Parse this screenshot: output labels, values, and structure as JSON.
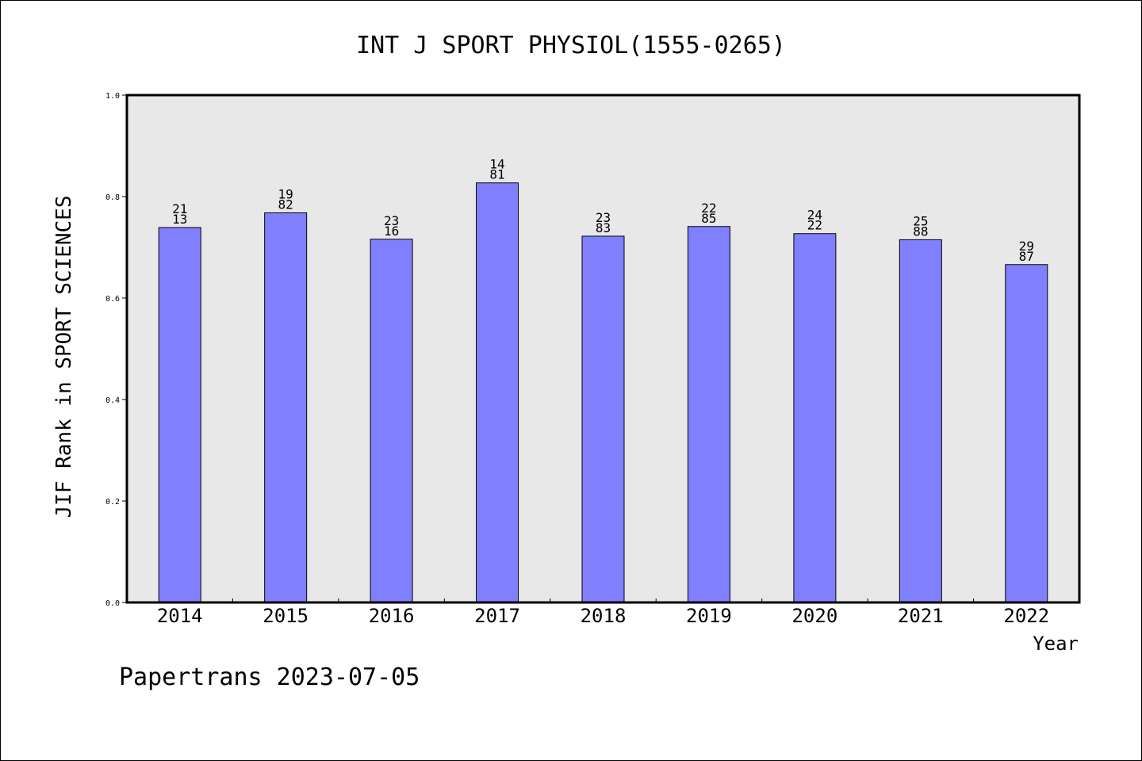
{
  "chart_data": {
    "type": "bar",
    "title": "INT J SPORT PHYSIOL(1555-0265)",
    "xlabel": "Year",
    "ylabel": "JIF Rank in SPORT SCIENCES",
    "ylim": [
      0.0,
      1.0
    ],
    "yticks": [
      "0.0",
      "0.2",
      "0.4",
      "0.6",
      "0.8",
      "1.0"
    ],
    "grid": false,
    "categories": [
      "2014",
      "2015",
      "2016",
      "2017",
      "2018",
      "2019",
      "2020",
      "2021",
      "2022"
    ],
    "values": [
      0.739,
      0.768,
      0.716,
      0.827,
      0.722,
      0.741,
      0.727,
      0.715,
      0.666
    ],
    "data_labels": [
      [
        "21",
        "13"
      ],
      [
        "19",
        "82"
      ],
      [
        "23",
        "16"
      ],
      [
        "14",
        "81"
      ],
      [
        "23",
        "83"
      ],
      [
        "22",
        "85"
      ],
      [
        "24",
        "22"
      ],
      [
        "25",
        "88"
      ],
      [
        "29",
        "87"
      ]
    ],
    "colors": {
      "bar_fill": "#8080ff",
      "plot_background": "#e8e8e8"
    }
  },
  "footer": "Papertrans 2023-07-05"
}
